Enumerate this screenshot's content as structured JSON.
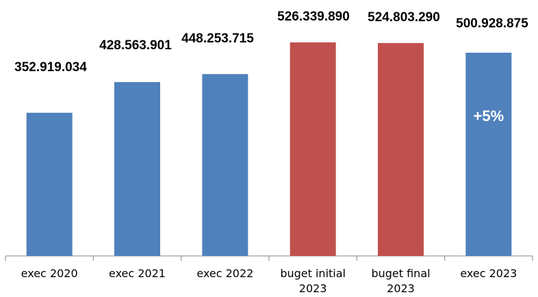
{
  "chart_data": {
    "type": "bar",
    "title": "",
    "xlabel": "",
    "ylabel": "",
    "ylim": [
      0,
      560000000
    ],
    "grid": false,
    "categories": [
      [
        "exec 2020"
      ],
      [
        "exec 2021"
      ],
      [
        "exec 2022"
      ],
      [
        "buget initial",
        "2023"
      ],
      [
        "buget final",
        "2023"
      ],
      [
        "exec 2023"
      ]
    ],
    "values": [
      352919034,
      428563901,
      448253715,
      526339890,
      524803290,
      500928875
    ],
    "value_labels": [
      "352.919.034",
      "428.563.901",
      "448.253.715",
      "526.339.890",
      "524.803.290",
      "500.928.875"
    ],
    "bar_colors": [
      "#4f81bd",
      "#4f81bd",
      "#4f81bd",
      "#c0504d",
      "#c0504d",
      "#4f81bd"
    ],
    "annotations": [
      {
        "category_index": 5,
        "text": "+5%",
        "color": "#ffffff"
      }
    ]
  }
}
